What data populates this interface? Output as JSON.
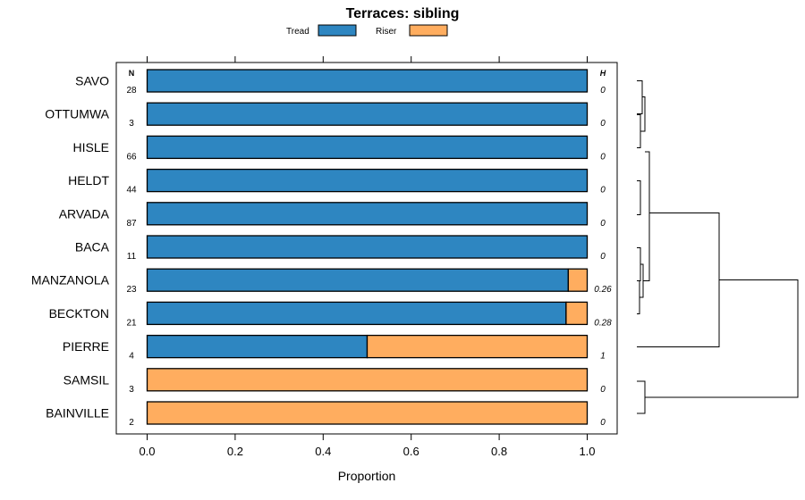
{
  "chart_data": {
    "type": "bar",
    "orientation": "horizontal",
    "stacked": true,
    "title": "Terraces: sibling",
    "xlabel": "Proportion",
    "xlim": [
      0,
      1
    ],
    "xticks": [
      "0.0",
      "0.2",
      "0.4",
      "0.6",
      "0.8",
      "1.0"
    ],
    "n_header": "N",
    "h_header": "H",
    "legend": [
      {
        "name": "Tread",
        "color": "#2e86c1"
      },
      {
        "name": "Riser",
        "color": "#ffad5f"
      }
    ],
    "categories": [
      "SAVO",
      "OTTUMWA",
      "HISLE",
      "HELDT",
      "ARVADA",
      "BACA",
      "MANZANOLA",
      "BECKTON",
      "PIERRE",
      "SAMSIL",
      "BAINVILLE"
    ],
    "n": [
      "28",
      "3",
      "66",
      "44",
      "87",
      "11",
      "23",
      "21",
      "4",
      "3",
      "2"
    ],
    "h": [
      "0",
      "0",
      "0",
      "0",
      "0",
      "0",
      "0.26",
      "0.28",
      "1",
      "0",
      "0"
    ],
    "series": [
      {
        "name": "Tread",
        "values": [
          1,
          1,
          1,
          1,
          1,
          1,
          0.957,
          0.952,
          0.5,
          0,
          0
        ]
      },
      {
        "name": "Riser",
        "values": [
          0,
          0,
          0,
          0,
          0,
          0,
          0.043,
          0.048,
          0.5,
          1,
          1
        ]
      }
    ]
  }
}
